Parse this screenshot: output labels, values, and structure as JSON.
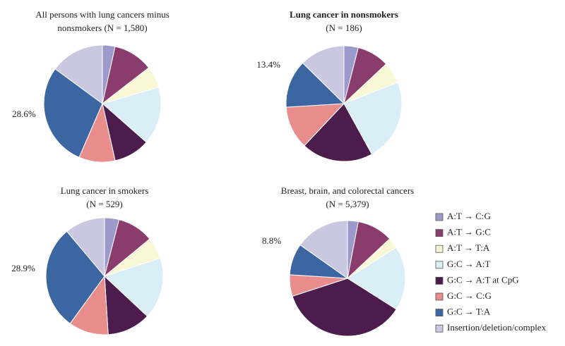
{
  "chart_data": [
    {
      "type": "pie",
      "title": "All persons with lung cancers minus",
      "subtitle": "nonsmokers (N = 1,580)",
      "values": [
        3.5,
        11,
        6,
        16,
        10,
        10,
        28.6,
        14.9
      ],
      "value_labels": [
        null,
        null,
        null,
        null,
        null,
        null,
        "28.6%",
        null
      ]
    },
    {
      "type": "pie",
      "title": "Lung cancer in nonsmokers",
      "subtitle": "(N = 186)",
      "bold_title": true,
      "values": [
        4,
        9,
        6,
        23,
        20,
        12,
        13.4,
        12.6
      ],
      "value_labels": [
        null,
        null,
        null,
        null,
        null,
        null,
        "13.4%",
        null
      ]
    },
    {
      "type": "pie",
      "title": "Lung cancer in smokers",
      "subtitle": "(N = 529)",
      "values": [
        4,
        10,
        6,
        17,
        12,
        11,
        28.9,
        11.1
      ],
      "value_labels": [
        null,
        null,
        null,
        null,
        null,
        null,
        "28.9%",
        null
      ]
    },
    {
      "type": "pie",
      "title": "Breast, brain, and colorectal cancers",
      "subtitle": "(N = 5,379)",
      "values": [
        3,
        10,
        3,
        18,
        36,
        6,
        8.8,
        15.2
      ],
      "value_labels": [
        null,
        null,
        null,
        null,
        null,
        null,
        "8.8%",
        null
      ]
    }
  ],
  "legend": {
    "labels": [
      "A:T → C:G",
      "A:T → G:C",
      "A:T → T:A",
      "G:C → A:T",
      "G:C → A:T at CpG",
      "G:C → C:G",
      "G:C → T:A",
      "Insertion/deletion/complex"
    ],
    "colors": [
      "#9c9acb",
      "#8a3c6c",
      "#faf7d6",
      "#d9eef6",
      "#4b1c4c",
      "#e98d8c",
      "#3b66a2",
      "#c9c8e0"
    ]
  }
}
